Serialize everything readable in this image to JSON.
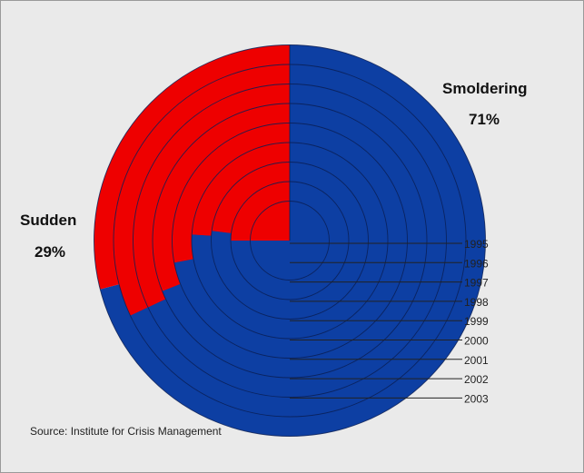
{
  "chart_data": {
    "type": "pie",
    "variant": "concentric-rings",
    "categories": [
      "1995",
      "1996",
      "1997",
      "1998",
      "1999",
      "2000",
      "2001",
      "2002",
      "2003"
    ],
    "series": [
      {
        "name": "Sudden",
        "values": [
          25,
          25,
          23,
          24,
          28,
          31,
          32,
          32,
          29
        ],
        "color": "#ee0000"
      },
      {
        "name": "Smoldering",
        "values": [
          75,
          75,
          77,
          76,
          72,
          69,
          68,
          68,
          71
        ],
        "color": "#0d3fa3"
      }
    ],
    "labels": {
      "sudden": {
        "name": "Sudden",
        "pct": "29%"
      },
      "smoldering": {
        "name": "Smoldering",
        "pct": "71%"
      }
    },
    "source": "Source: Institute for Crisis Management"
  }
}
